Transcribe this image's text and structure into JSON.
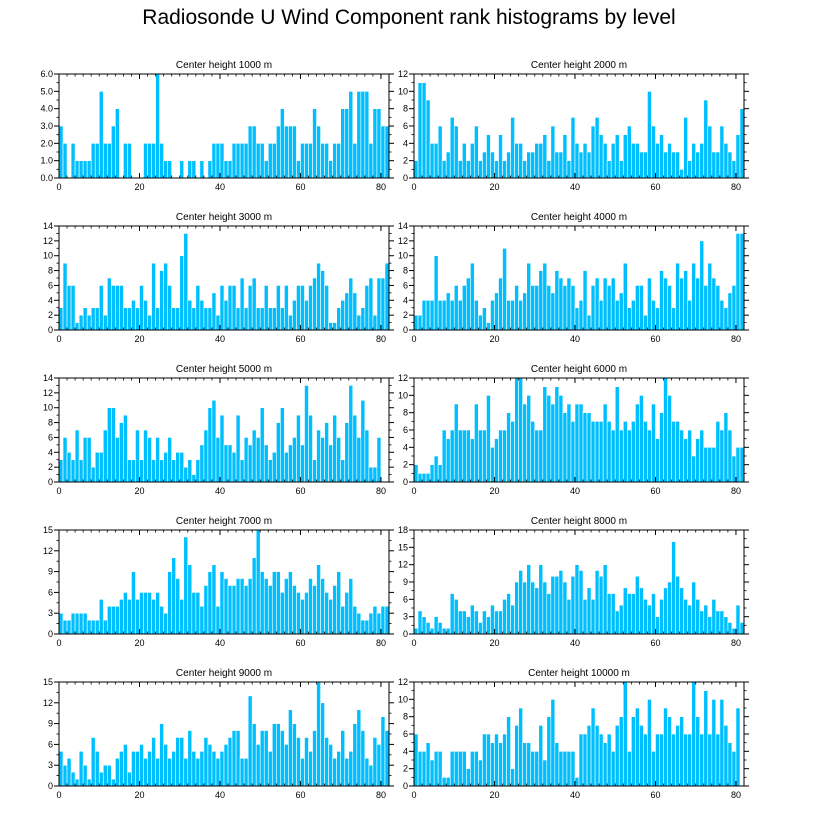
{
  "title": "Radiosonde U Wind Component rank histograms by level",
  "colors": {
    "bar": "#00bfff",
    "bar_edge": "#ffffff",
    "axis": "#000000"
  },
  "chart_data": [
    {
      "type": "bar",
      "title": "Center height 1000 m",
      "xlim": [
        0,
        82
      ],
      "ylim": [
        0,
        6
      ],
      "xticks": [
        0,
        20,
        40,
        60,
        80
      ],
      "yticks": [
        0,
        1,
        2,
        3,
        4,
        5,
        6
      ],
      "ytick_labels": [
        "0.0",
        "1.0",
        "2.0",
        "3.0",
        "4.0",
        "5.0",
        "6.0"
      ],
      "values": [
        3,
        2,
        0,
        2,
        1,
        1,
        1,
        1,
        2,
        2,
        5,
        2,
        2,
        3,
        4,
        0,
        2,
        2,
        0,
        0,
        0,
        2,
        2,
        2,
        6,
        2,
        1,
        1,
        0,
        0,
        1,
        0,
        1,
        1,
        0,
        1,
        0,
        1,
        2,
        2,
        2,
        1,
        1,
        2,
        2,
        2,
        2,
        3,
        3,
        2,
        2,
        1,
        2,
        2,
        3,
        4,
        3,
        3,
        3,
        1,
        2,
        2,
        2,
        4,
        3,
        2,
        2,
        1,
        2,
        2,
        4,
        4,
        5,
        2,
        5,
        5,
        5,
        2,
        4,
        4,
        3,
        3
      ]
    },
    {
      "type": "bar",
      "title": "Center height 2000 m",
      "xlim": [
        0,
        82
      ],
      "ylim": [
        0,
        12
      ],
      "xticks": [
        0,
        20,
        40,
        60,
        80
      ],
      "yticks": [
        0,
        2,
        4,
        6,
        8,
        10,
        12
      ],
      "values": [
        2,
        11,
        11,
        9,
        4,
        4,
        6,
        2,
        3,
        7,
        6,
        2,
        4,
        2,
        4,
        6,
        2,
        3,
        5,
        3,
        2,
        5,
        2,
        3,
        7,
        4,
        4,
        2,
        3,
        3,
        4,
        4,
        5,
        2,
        6,
        3,
        3,
        5,
        2,
        7,
        4,
        3,
        4,
        3,
        6,
        7,
        5,
        4,
        2,
        4,
        5,
        2,
        5,
        6,
        4,
        4,
        3,
        3,
        10,
        6,
        4,
        5,
        3,
        4,
        3,
        3,
        1,
        7,
        2,
        4,
        3,
        4,
        9,
        6,
        3,
        3,
        6,
        4,
        3,
        2,
        5,
        8
      ]
    },
    {
      "type": "bar",
      "title": "Center height 3000 m",
      "xlim": [
        0,
        82
      ],
      "ylim": [
        0,
        14
      ],
      "xticks": [
        0,
        20,
        40,
        60,
        80
      ],
      "yticks": [
        0,
        2,
        4,
        6,
        8,
        10,
        12,
        14
      ],
      "values": [
        3,
        9,
        6,
        6,
        1,
        2,
        3,
        2,
        3,
        3,
        6,
        2,
        7,
        6,
        6,
        6,
        3,
        3,
        4,
        3,
        6,
        4,
        2,
        9,
        3,
        8,
        9,
        6,
        3,
        3,
        10,
        13,
        4,
        3,
        6,
        4,
        3,
        3,
        5,
        2,
        6,
        4,
        6,
        6,
        3,
        7,
        3,
        6,
        7,
        3,
        3,
        6,
        3,
        3,
        6,
        3,
        6,
        2,
        4,
        6,
        6,
        4,
        6,
        7,
        9,
        8,
        6,
        1,
        1,
        3,
        4,
        5,
        7,
        5,
        2,
        3,
        6,
        7,
        2,
        7,
        7,
        9
      ]
    },
    {
      "type": "bar",
      "title": "Center height 4000 m",
      "xlim": [
        0,
        82
      ],
      "ylim": [
        0,
        14
      ],
      "xticks": [
        0,
        20,
        40,
        60,
        80
      ],
      "yticks": [
        0,
        2,
        4,
        6,
        8,
        10,
        12,
        14
      ],
      "values": [
        2,
        2,
        4,
        4,
        4,
        10,
        4,
        4,
        5,
        4,
        6,
        4,
        6,
        7,
        9,
        4,
        2,
        3,
        1,
        4,
        5,
        7,
        11,
        4,
        4,
        6,
        4,
        5,
        9,
        6,
        6,
        8,
        9,
        6,
        5,
        8,
        7,
        6,
        7,
        6,
        3,
        4,
        8,
        2,
        6,
        7,
        4,
        7,
        6,
        7,
        4,
        5,
        9,
        3,
        4,
        6,
        6,
        2,
        7,
        4,
        3,
        8,
        7,
        6,
        3,
        9,
        7,
        8,
        4,
        9,
        7,
        12,
        6,
        9,
        7,
        6,
        4,
        3,
        5,
        6,
        13,
        13
      ]
    },
    {
      "type": "bar",
      "title": "Center height 5000 m",
      "xlim": [
        0,
        82
      ],
      "ylim": [
        0,
        14
      ],
      "xticks": [
        0,
        20,
        40,
        60,
        80
      ],
      "yticks": [
        0,
        2,
        4,
        6,
        8,
        10,
        12,
        14
      ],
      "values": [
        3,
        6,
        4,
        3,
        7,
        3,
        6,
        6,
        2,
        4,
        4,
        7,
        10,
        10,
        6,
        8,
        9,
        3,
        3,
        7,
        3,
        7,
        6,
        3,
        6,
        3,
        4,
        6,
        3,
        4,
        4,
        2,
        3,
        1,
        3,
        5,
        7,
        10,
        11,
        6,
        9,
        5,
        5,
        4,
        9,
        3,
        6,
        5,
        7,
        6,
        10,
        5,
        3,
        4,
        8,
        10,
        4,
        5,
        6,
        9,
        5,
        13,
        9,
        3,
        7,
        6,
        8,
        5,
        9,
        6,
        3,
        8,
        13,
        9,
        6,
        11,
        7,
        2,
        2,
        6,
        0,
        0
      ]
    },
    {
      "type": "bar",
      "title": "Center height 6000 m",
      "xlim": [
        0,
        82
      ],
      "ylim": [
        0,
        12
      ],
      "xticks": [
        0,
        20,
        40,
        60,
        80
      ],
      "yticks": [
        0,
        2,
        4,
        6,
        8,
        10,
        12
      ],
      "values": [
        2,
        1,
        1,
        1,
        2,
        3,
        2,
        6,
        5,
        6,
        9,
        6,
        6,
        6,
        5,
        9,
        6,
        6,
        10,
        4,
        5,
        6,
        6,
        8,
        7,
        12,
        12,
        9,
        10,
        7,
        6,
        6,
        11,
        10,
        9,
        11,
        10,
        8,
        9,
        7,
        9,
        9,
        8,
        8,
        7,
        7,
        7,
        9,
        7,
        6,
        11,
        6,
        7,
        6,
        7,
        9,
        10,
        7,
        6,
        9,
        5,
        8,
        12,
        10,
        7,
        7,
        6,
        5,
        6,
        3,
        5,
        6,
        4,
        4,
        4,
        7,
        6,
        8,
        6,
        3,
        4,
        4
      ]
    },
    {
      "type": "bar",
      "title": "Center height 7000 m",
      "xlim": [
        0,
        82
      ],
      "ylim": [
        0,
        15
      ],
      "xticks": [
        0,
        20,
        40,
        60,
        80
      ],
      "yticks": [
        0,
        3,
        6,
        9,
        12,
        15
      ],
      "values": [
        3,
        2,
        2,
        3,
        3,
        3,
        3,
        2,
        2,
        2,
        5,
        2,
        4,
        4,
        4,
        5,
        6,
        5,
        9,
        5,
        6,
        6,
        6,
        5,
        6,
        4,
        3,
        9,
        11,
        8,
        5,
        14,
        10,
        6,
        6,
        4,
        7,
        9,
        10,
        4,
        9,
        8,
        7,
        7,
        8,
        8,
        7,
        8,
        11,
        15,
        9,
        8,
        7,
        9,
        9,
        6,
        8,
        9,
        7,
        6,
        5,
        6,
        8,
        7,
        10,
        8,
        6,
        5,
        7,
        9,
        4,
        6,
        8,
        4,
        3,
        2,
        2,
        3,
        4,
        3,
        4,
        4
      ]
    },
    {
      "type": "bar",
      "title": "Center height 8000 m",
      "xlim": [
        0,
        82
      ],
      "ylim": [
        0,
        18
      ],
      "xticks": [
        0,
        20,
        40,
        60,
        80
      ],
      "yticks": [
        0,
        3,
        6,
        9,
        12,
        15,
        18
      ],
      "values": [
        1,
        4,
        3,
        2,
        1,
        3,
        2,
        1,
        1,
        7,
        6,
        4,
        4,
        3,
        5,
        4,
        2,
        4,
        3,
        5,
        4,
        4,
        6,
        7,
        5,
        9,
        11,
        9,
        12,
        9,
        8,
        12,
        9,
        7,
        10,
        10,
        11,
        9,
        6,
        10,
        12,
        11,
        6,
        8,
        6,
        11,
        10,
        12,
        7,
        7,
        4,
        5,
        8,
        7,
        7,
        10,
        8,
        6,
        5,
        7,
        3,
        6,
        8,
        9,
        16,
        10,
        8,
        6,
        5,
        9,
        6,
        4,
        5,
        3,
        6,
        4,
        4,
        3,
        2,
        1,
        5,
        2
      ]
    },
    {
      "type": "bar",
      "title": "Center height 9000 m",
      "xlim": [
        0,
        82
      ],
      "ylim": [
        0,
        15
      ],
      "xticks": [
        0,
        20,
        40,
        60,
        80
      ],
      "yticks": [
        0,
        3,
        6,
        9,
        12,
        15
      ],
      "values": [
        5,
        3,
        4,
        2,
        1,
        5,
        3,
        1,
        7,
        5,
        2,
        3,
        3,
        1,
        4,
        5,
        6,
        2,
        5,
        5,
        6,
        4,
        5,
        7,
        4,
        9,
        6,
        4,
        5,
        7,
        7,
        4,
        8,
        5,
        4,
        5,
        7,
        6,
        5,
        4,
        5,
        6,
        7,
        8,
        8,
        4,
        4,
        13,
        9,
        6,
        8,
        8,
        5,
        9,
        9,
        8,
        6,
        11,
        9,
        7,
        4,
        7,
        5,
        8,
        15,
        12,
        7,
        6,
        4,
        5,
        8,
        4,
        5,
        9,
        11,
        8,
        4,
        3,
        7,
        6,
        10,
        8
      ]
    },
    {
      "type": "bar",
      "title": "Center height 10000 m",
      "xlim": [
        0,
        82
      ],
      "ylim": [
        0,
        12
      ],
      "xticks": [
        0,
        20,
        40,
        60,
        80
      ],
      "yticks": [
        0,
        2,
        4,
        6,
        8,
        10,
        12
      ],
      "values": [
        6,
        4,
        4,
        5,
        3,
        4,
        4,
        1,
        1,
        4,
        4,
        4,
        4,
        2,
        4,
        4,
        3,
        6,
        6,
        5,
        6,
        5,
        6,
        8,
        2,
        7,
        9,
        5,
        5,
        4,
        4,
        7,
        3,
        8,
        10,
        5,
        4,
        4,
        4,
        4,
        1,
        6,
        6,
        7,
        9,
        7,
        6,
        5,
        6,
        4,
        7,
        8,
        12,
        4,
        8,
        9,
        7,
        6,
        10,
        4,
        6,
        6,
        9,
        8,
        6,
        7,
        8,
        6,
        6,
        12,
        8,
        6,
        11,
        6,
        10,
        6,
        10,
        7,
        5,
        4,
        9,
        0
      ]
    }
  ]
}
